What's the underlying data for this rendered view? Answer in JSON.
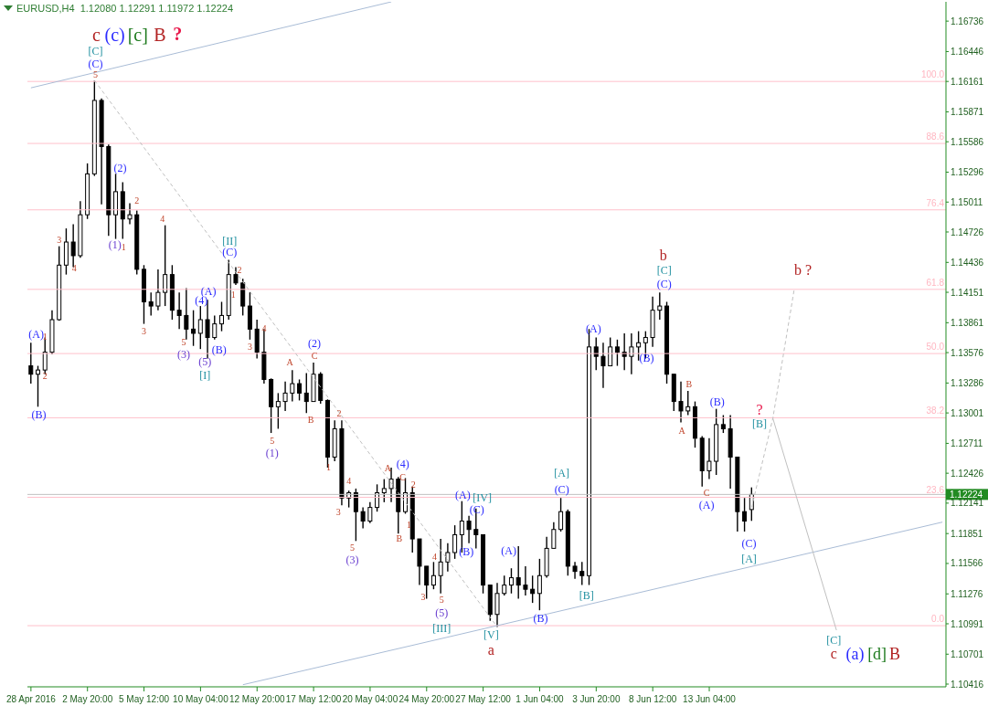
{
  "chart_data": {
    "type": "candlestick",
    "title": "EURUSD,H4  1.12080 1.12291 1.11972 1.12224",
    "categories": [
      "28 Apr 2016",
      null,
      null,
      null,
      null,
      null,
      null,
      null,
      "2 May 20:00",
      null,
      null,
      null,
      null,
      null,
      null,
      null,
      "5 May 12:00",
      null,
      null,
      null,
      null,
      null,
      null,
      null,
      "10 May 04:00",
      null,
      null,
      null,
      null,
      null,
      null,
      null,
      "12 May 20:00",
      null,
      null,
      null,
      null,
      null,
      null,
      null,
      "17 May 12:00",
      null,
      null,
      null,
      null,
      null,
      null,
      null,
      "20 May 04:00",
      null,
      null,
      null,
      null,
      null,
      null,
      null,
      "24 May 20:00",
      null,
      null,
      null,
      null,
      null,
      null,
      null,
      "27 May 12:00",
      null,
      null,
      null,
      null,
      null,
      null,
      null,
      "1 Jun 04:00",
      null,
      null,
      null,
      null,
      null,
      null,
      null,
      "3 Jun 20:00",
      null,
      null,
      null,
      null,
      null,
      null,
      null,
      "8 Jun 12:00",
      null,
      null,
      null,
      null,
      null,
      null,
      null,
      "13 Jun 04:00",
      null,
      null,
      null,
      null,
      null,
      null,
      null,
      null,
      null,
      null,
      null,
      null,
      null,
      null,
      null,
      null,
      null,
      null,
      null,
      null,
      null,
      null,
      null,
      null,
      null,
      null,
      null,
      null,
      null,
      null,
      null,
      null,
      null
    ],
    "ohlc": [
      [
        1.1345,
        1.1367,
        1.1328,
        1.1337
      ],
      [
        1.1337,
        1.1345,
        1.1306,
        1.1341
      ],
      [
        1.1341,
        1.1372,
        1.1337,
        1.1358
      ],
      [
        1.1358,
        1.1398,
        1.1356,
        1.1389
      ],
      [
        1.1389,
        1.1459,
        1.1388,
        1.1441
      ],
      [
        1.1441,
        1.1476,
        1.1432,
        1.1463
      ],
      [
        1.1463,
        1.148,
        1.1439,
        1.145
      ],
      [
        1.145,
        1.1502,
        1.1448,
        1.1489
      ],
      [
        1.1489,
        1.1538,
        1.1485,
        1.1528
      ],
      [
        1.1528,
        1.1617,
        1.1526,
        1.1598
      ],
      [
        1.1598,
        1.16,
        1.1499,
        1.1554
      ],
      [
        1.1554,
        1.1556,
        1.1469,
        1.1489
      ],
      [
        1.1489,
        1.1528,
        1.1466,
        1.1511
      ],
      [
        1.1511,
        1.152,
        1.1466,
        1.1485
      ],
      [
        1.1485,
        1.15,
        1.148,
        1.1489
      ],
      [
        1.1489,
        1.1493,
        1.1432,
        1.1437
      ],
      [
        1.1437,
        1.1441,
        1.1385,
        1.1406
      ],
      [
        1.1406,
        1.1415,
        1.1393,
        1.1402
      ],
      [
        1.1402,
        1.1437,
        1.1398,
        1.1415
      ],
      [
        1.1415,
        1.1479,
        1.1402,
        1.1432
      ],
      [
        1.1432,
        1.1441,
        1.1389,
        1.1398
      ],
      [
        1.1398,
        1.1415,
        1.138,
        1.1393
      ],
      [
        1.1393,
        1.1419,
        1.137,
        1.138
      ],
      [
        1.138,
        1.1398,
        1.1364,
        1.1376
      ],
      [
        1.1376,
        1.1402,
        1.1361,
        1.1389
      ],
      [
        1.1389,
        1.1408,
        1.1352,
        1.1372
      ],
      [
        1.1372,
        1.1393,
        1.137,
        1.1385
      ],
      [
        1.1385,
        1.1406,
        1.1378,
        1.1393
      ],
      [
        1.1393,
        1.1446,
        1.1389,
        1.1432
      ],
      [
        1.1432,
        1.1439,
        1.1422,
        1.1424
      ],
      [
        1.1424,
        1.1428,
        1.1393,
        1.1402
      ],
      [
        1.1402,
        1.1415,
        1.137,
        1.138
      ],
      [
        1.138,
        1.1389,
        1.1352,
        1.1358
      ],
      [
        1.1358,
        1.138,
        1.1328,
        1.1332
      ],
      [
        1.1332,
        1.1333,
        1.1281,
        1.1306
      ],
      [
        1.1306,
        1.1319,
        1.1285,
        1.1311
      ],
      [
        1.1311,
        1.133,
        1.1302,
        1.1319
      ],
      [
        1.1319,
        1.1341,
        1.1311,
        1.1328
      ],
      [
        1.1328,
        1.1332,
        1.1312,
        1.1319
      ],
      [
        1.1319,
        1.1338,
        1.13,
        1.1311
      ],
      [
        1.1311,
        1.1348,
        1.1311,
        1.1337
      ],
      [
        1.1337,
        1.1339,
        1.1309,
        1.1312
      ],
      [
        1.1312,
        1.1313,
        1.1248,
        1.1258
      ],
      [
        1.1258,
        1.1293,
        1.1254,
        1.1285
      ],
      [
        1.1285,
        1.1293,
        1.1212,
        1.1219
      ],
      [
        1.1219,
        1.1226,
        1.121,
        1.1224
      ],
      [
        1.1224,
        1.1228,
        1.1178,
        1.1206
      ],
      [
        1.1206,
        1.121,
        1.119,
        1.1197
      ],
      [
        1.1197,
        1.1215,
        1.1195,
        1.121
      ],
      [
        1.121,
        1.1232,
        1.1206,
        1.1224
      ],
      [
        1.1224,
        1.1237,
        1.1215,
        1.1228
      ],
      [
        1.1228,
        1.1248,
        1.1215,
        1.1237
      ],
      [
        1.1237,
        1.1239,
        1.1185,
        1.1206
      ],
      [
        1.1206,
        1.1238,
        1.1204,
        1.1224
      ],
      [
        1.1224,
        1.123,
        1.1167,
        1.118
      ],
      [
        1.118,
        1.118,
        1.1136,
        1.1154
      ],
      [
        1.1154,
        1.1154,
        1.1123,
        1.1136
      ],
      [
        1.1136,
        1.1158,
        1.1132,
        1.1145
      ],
      [
        1.1145,
        1.118,
        1.1128,
        1.1158
      ],
      [
        1.1158,
        1.1176,
        1.1149,
        1.1167
      ],
      [
        1.1167,
        1.1193,
        1.1161,
        1.1184
      ],
      [
        1.1184,
        1.1216,
        1.1167,
        1.1197
      ],
      [
        1.1197,
        1.1202,
        1.1176,
        1.1189
      ],
      [
        1.1189,
        1.1209,
        1.1171,
        1.1184
      ],
      [
        1.1184,
        1.1184,
        1.1128,
        1.1136
      ],
      [
        1.1136,
        1.1136,
        1.1102,
        1.1108
      ],
      [
        1.1108,
        1.1138,
        1.1096,
        1.1128
      ],
      [
        1.1128,
        1.1145,
        1.1126,
        1.1136
      ],
      [
        1.1136,
        1.1152,
        1.1128,
        1.1143
      ],
      [
        1.1143,
        1.1173,
        1.1123,
        1.1136
      ],
      [
        1.1136,
        1.1154,
        1.1126,
        1.1132
      ],
      [
        1.1132,
        1.1145,
        1.1119,
        1.1128
      ],
      [
        1.1128,
        1.1161,
        1.1112,
        1.1145
      ],
      [
        1.1145,
        1.1182,
        1.1143,
        1.1171
      ],
      [
        1.1171,
        1.1196,
        1.1171,
        1.1189
      ],
      [
        1.1189,
        1.1219,
        1.1187,
        1.1206
      ],
      [
        1.1206,
        1.1208,
        1.1145,
        1.1154
      ],
      [
        1.1154,
        1.1158,
        1.1142,
        1.1149
      ],
      [
        1.1149,
        1.1158,
        1.1136,
        1.1145
      ],
      [
        1.1145,
        1.138,
        1.1136,
        1.1363
      ],
      [
        1.1363,
        1.1372,
        1.1341,
        1.1354
      ],
      [
        1.1354,
        1.1367,
        1.1324,
        1.1345
      ],
      [
        1.1345,
        1.1372,
        1.1345,
        1.1363
      ],
      [
        1.1363,
        1.137,
        1.1345,
        1.1358
      ],
      [
        1.1358,
        1.1376,
        1.1341,
        1.1354
      ],
      [
        1.1354,
        1.1376,
        1.1337,
        1.1363
      ],
      [
        1.1363,
        1.1378,
        1.135,
        1.1367
      ],
      [
        1.1367,
        1.1378,
        1.1352,
        1.1372
      ],
      [
        1.1372,
        1.1411,
        1.1363,
        1.1398
      ],
      [
        1.1398,
        1.1415,
        1.1389,
        1.1402
      ],
      [
        1.1402,
        1.1406,
        1.1328,
        1.1337
      ],
      [
        1.1337,
        1.1337,
        1.1302,
        1.1311
      ],
      [
        1.1311,
        1.133,
        1.1291,
        1.1302
      ],
      [
        1.1302,
        1.1321,
        1.1298,
        1.1306
      ],
      [
        1.1306,
        1.1311,
        1.1267,
        1.1276
      ],
      [
        1.1276,
        1.1278,
        1.123,
        1.1245
      ],
      [
        1.1245,
        1.1276,
        1.1237,
        1.1254
      ],
      [
        1.1254,
        1.1304,
        1.1241,
        1.1289
      ],
      [
        1.1289,
        1.1298,
        1.1281,
        1.1285
      ],
      [
        1.1285,
        1.1298,
        1.1228,
        1.1258
      ],
      [
        1.1258,
        1.1258,
        1.1187,
        1.1206
      ],
      [
        1.1206,
        1.1219,
        1.1187,
        1.1197
      ],
      [
        1.1208,
        1.12291,
        1.11972,
        1.12224
      ],
      null,
      null,
      null,
      null,
      null,
      null,
      null,
      null,
      null,
      null,
      null,
      null,
      null,
      null,
      null,
      null,
      null,
      null,
      null,
      null,
      null,
      null,
      null,
      null,
      null,
      null,
      null
    ],
    "series": [
      {
        "type": "line",
        "color": "#a9bcd6",
        "line_style": "solid",
        "values": [
          1.161,
          null,
          null,
          null,
          null,
          null,
          null,
          null,
          null,
          null,
          null,
          null,
          null,
          null,
          null,
          null,
          null,
          null,
          null,
          null,
          null,
          null,
          null,
          null,
          null,
          null,
          null,
          null,
          null,
          null,
          null,
          null,
          null,
          null,
          null,
          null,
          null,
          null,
          null,
          null,
          null,
          null,
          null,
          null,
          null,
          null,
          null,
          null,
          null,
          null,
          null,
          1.1692,
          null,
          null,
          null,
          null,
          null,
          null,
          null,
          null,
          null,
          null,
          null,
          null,
          null,
          null,
          null,
          null,
          null,
          null,
          null,
          null,
          null,
          null,
          null,
          null,
          null,
          null,
          null,
          null,
          null,
          null,
          null,
          null,
          null,
          null,
          null,
          null,
          null,
          null,
          null,
          null,
          null,
          null,
          null,
          null,
          null,
          null,
          null,
          null,
          null,
          null,
          null,
          null,
          null,
          null,
          null,
          null,
          null,
          null,
          null,
          null,
          null,
          null,
          null,
          null,
          null,
          null,
          null,
          null,
          null,
          null,
          null,
          null,
          null,
          null,
          null,
          null,
          null,
          null
        ]
      },
      {
        "type": "line",
        "color": "#a9bcd6",
        "line_style": "solid",
        "values": [
          null,
          null,
          null,
          null,
          null,
          null,
          null,
          null,
          null,
          null,
          null,
          null,
          null,
          null,
          null,
          null,
          null,
          null,
          null,
          null,
          null,
          null,
          null,
          null,
          null,
          null,
          null,
          null,
          null,
          null,
          1.1041,
          null,
          null,
          null,
          null,
          null,
          null,
          null,
          null,
          null,
          null,
          null,
          null,
          null,
          null,
          null,
          null,
          null,
          null,
          null,
          null,
          null,
          null,
          null,
          null,
          null,
          null,
          null,
          null,
          null,
          null,
          null,
          null,
          null,
          null,
          null,
          null,
          null,
          null,
          null,
          null,
          null,
          null,
          null,
          null,
          null,
          null,
          null,
          null,
          null,
          null,
          null,
          null,
          null,
          null,
          null,
          null,
          null,
          null,
          null,
          null,
          null,
          null,
          null,
          null,
          null,
          null,
          null,
          null,
          null,
          null,
          null,
          null,
          null,
          null,
          null,
          null,
          null,
          null,
          null,
          null,
          null,
          null,
          null,
          null,
          null,
          null,
          null,
          null,
          null,
          null,
          null,
          null,
          null,
          null,
          null,
          null,
          null,
          null,
          1.1196
        ]
      },
      {
        "type": "line",
        "color": "#c0c0c0",
        "line_style": "dashed",
        "values": [
          null,
          null,
          null,
          null,
          null,
          null,
          null,
          null,
          null,
          1.1617,
          null,
          null,
          null,
          null,
          null,
          null,
          null,
          null,
          null,
          null,
          null,
          null,
          null,
          null,
          null,
          null,
          null,
          null,
          null,
          null,
          null,
          null,
          null,
          null,
          null,
          null,
          null,
          null,
          null,
          null,
          null,
          null,
          null,
          null,
          null,
          null,
          null,
          null,
          null,
          null,
          null,
          null,
          null,
          null,
          null,
          null,
          null,
          null,
          null,
          null,
          null,
          null,
          null,
          null,
          null,
          null,
          1.1096,
          null,
          null,
          null,
          null,
          null,
          null,
          null,
          null,
          null,
          null,
          null,
          null,
          null,
          null,
          null,
          null,
          null,
          null,
          null,
          null,
          null,
          null,
          null,
          null,
          null,
          null,
          null,
          null,
          null,
          null,
          null,
          null,
          null,
          null,
          null,
          null,
          null,
          null,
          null,
          null,
          null,
          null,
          null,
          null,
          null,
          null,
          null,
          null,
          null,
          null,
          null,
          null,
          null,
          null,
          null,
          null,
          null,
          null,
          null,
          null,
          null,
          null,
          null
        ]
      },
      {
        "type": "line",
        "color": "#c0c0c0",
        "line_style": "dashed",
        "values": [
          null,
          null,
          null,
          null,
          null,
          null,
          null,
          null,
          null,
          null,
          null,
          null,
          null,
          null,
          null,
          null,
          null,
          null,
          null,
          null,
          null,
          null,
          null,
          null,
          null,
          null,
          null,
          null,
          null,
          null,
          null,
          null,
          null,
          null,
          null,
          null,
          null,
          null,
          null,
          null,
          null,
          null,
          null,
          null,
          null,
          null,
          null,
          null,
          null,
          null,
          null,
          null,
          null,
          null,
          null,
          null,
          null,
          null,
          null,
          null,
          null,
          null,
          null,
          null,
          null,
          null,
          null,
          null,
          null,
          null,
          null,
          null,
          null,
          null,
          null,
          null,
          null,
          null,
          null,
          null,
          null,
          null,
          null,
          null,
          null,
          null,
          null,
          null,
          null,
          null,
          null,
          null,
          null,
          null,
          null,
          null,
          null,
          null,
          null,
          null,
          null,
          null,
          1.121,
          null,
          null,
          1.1295,
          null,
          null,
          1.1417,
          null,
          null,
          null,
          null,
          null,
          null,
          null,
          null,
          null,
          null,
          null,
          null,
          null,
          null,
          null,
          null,
          null,
          null,
          null,
          null,
          null
        ]
      },
      {
        "type": "line",
        "color": "#c0c0c0",
        "line_style": "solid",
        "values": [
          null,
          null,
          null,
          null,
          null,
          null,
          null,
          null,
          null,
          null,
          null,
          null,
          null,
          null,
          null,
          null,
          null,
          null,
          null,
          null,
          null,
          null,
          null,
          null,
          null,
          null,
          null,
          null,
          null,
          null,
          null,
          null,
          null,
          null,
          null,
          null,
          null,
          null,
          null,
          null,
          null,
          null,
          null,
          null,
          null,
          null,
          null,
          null,
          null,
          null,
          null,
          null,
          null,
          null,
          null,
          null,
          null,
          null,
          null,
          null,
          null,
          null,
          null,
          null,
          null,
          null,
          null,
          null,
          null,
          null,
          null,
          null,
          null,
          null,
          null,
          null,
          null,
          null,
          null,
          null,
          null,
          null,
          null,
          null,
          null,
          null,
          null,
          null,
          null,
          null,
          null,
          null,
          null,
          null,
          null,
          null,
          null,
          null,
          null,
          null,
          null,
          null,
          null,
          null,
          null,
          1.1295,
          null,
          null,
          null,
          null,
          null,
          null,
          null,
          null,
          1.1093,
          null,
          null,
          null,
          null,
          null,
          null,
          null,
          null,
          null,
          null,
          null,
          null,
          null,
          null,
          null
        ]
      }
    ],
    "ylim": [
      1.1039,
      1.1692
    ],
    "yticks": [
      1.16736,
      1.16446,
      1.16161,
      1.15871,
      1.15586,
      1.15296,
      1.15011,
      1.14726,
      1.14436,
      1.14151,
      1.13861,
      1.13576,
      1.13286,
      1.13001,
      1.12711,
      1.12426,
      1.12141,
      1.11851,
      1.11566,
      1.11276,
      1.10991,
      1.10701,
      1.10416
    ],
    "ref_lines": [
      {
        "axis": "y",
        "value": 1.16161,
        "color": "#ffc0cb"
      },
      {
        "axis": "y",
        "value": 1.1557,
        "color": "#ffc0cb"
      },
      {
        "axis": "y",
        "value": 1.14937,
        "color": "#ffc0cb"
      },
      {
        "axis": "y",
        "value": 1.14179,
        "color": "#ffc0cb"
      },
      {
        "axis": "y",
        "value": 1.13567,
        "color": "#ffc0cb"
      },
      {
        "axis": "y",
        "value": 1.12955,
        "color": "#ffc0cb"
      },
      {
        "axis": "y",
        "value": 1.12197,
        "color": "#ffc0cb"
      },
      {
        "axis": "y",
        "value": 1.10973,
        "color": "#ffc0cb"
      },
      {
        "axis": "y",
        "value": 1.12224,
        "label": "1.12224",
        "color": "#c0c0c0"
      }
    ],
    "annotations": [
      "c",
      "(c)",
      "[c]",
      "B",
      "?",
      "[C]",
      "(C)",
      "5",
      "(2)",
      "(1)",
      "1",
      "2",
      "3",
      "4",
      "(A)",
      "1",
      "2",
      "(B)",
      "4",
      "3",
      "5",
      "(3)",
      "(4)",
      "(A)",
      "(B)",
      "(5)",
      "[I]",
      "[II]",
      "(C)",
      "2",
      "1",
      "4",
      "3",
      "(2)",
      "C",
      "A",
      "B",
      "5",
      "(1)",
      "2",
      "1",
      "4",
      "3",
      "5",
      "(3)",
      "A",
      "(4)",
      "C",
      "2",
      "1",
      "B",
      "4",
      "3",
      "5",
      "(5)",
      "[III]",
      "(A)",
      "[IV]",
      "(C)",
      "(B)",
      "[V]",
      "a",
      "(A)",
      "(B)",
      "[A]",
      "(C)",
      "[B]",
      "(A)",
      "(B)",
      "b",
      "[C]",
      "(C)",
      "B",
      "A",
      "(B)",
      "C",
      "(A)",
      "?",
      "[B]",
      "(C)",
      "[A]",
      "b ?",
      "[C]",
      "c",
      "(a)",
      "[d]",
      "B",
      {
        "text": "100.0",
        "y": 1.16161
      },
      {
        "text": "88.6",
        "y": 1.1557
      },
      {
        "text": "76.4",
        "y": 1.14937
      },
      {
        "text": "61.8",
        "y": 1.14179
      },
      {
        "text": "50.0",
        "y": 1.13567
      },
      {
        "text": "38.2",
        "y": 1.12955
      },
      {
        "text": "23.6",
        "y": 1.12197
      },
      {
        "text": "0.0",
        "y": 1.10973
      }
    ]
  }
}
